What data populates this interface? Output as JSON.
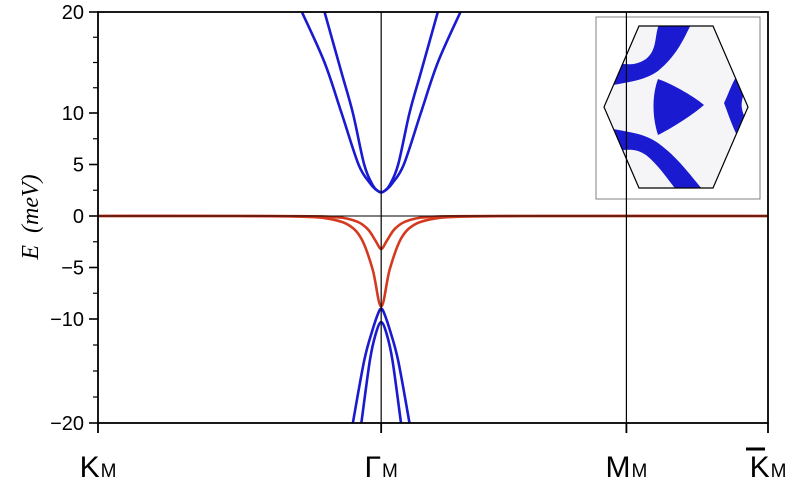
{
  "chart_data": {
    "type": "line",
    "title": "",
    "ylabel": {
      "symbol": "E",
      "unit": "(meV)"
    },
    "xlabel": "",
    "ylim": [
      -20,
      20
    ],
    "axis_break": "between 10 and 20 and between -10 and -20 (compressed outer scale)",
    "yticks": [
      {
        "label": "20",
        "value": 20
      },
      {
        "label": "10",
        "value": 10
      },
      {
        "label": "5",
        "value": 5
      },
      {
        "label": "0",
        "value": 0
      },
      {
        "label": "−5",
        "value": -5
      },
      {
        "label": "−10",
        "value": -10
      },
      {
        "label": "−20",
        "value": -20
      }
    ],
    "kpoints": [
      {
        "main": "K",
        "sub": "M",
        "bar": false,
        "x": 0
      },
      {
        "main": "Γ",
        "sub": "M",
        "bar": false,
        "x": 1
      },
      {
        "main": "M",
        "sub": "M",
        "bar": false,
        "x": 1.866
      },
      {
        "main": "K",
        "sub": "M",
        "bar": true,
        "x": 2.366
      }
    ],
    "vertical_lines_at": [
      1,
      1.866
    ],
    "zero_line": true,
    "series_colors": {
      "blue": "#1a1ad0",
      "red": "#d43a20"
    },
    "series": [
      {
        "color": "blue",
        "x": [
          0.72,
          0.8,
          0.86,
          0.92,
          0.96,
          0.98,
          1.0,
          1.02,
          1.04,
          1.08,
          1.14,
          1.2,
          1.28
        ],
        "y": [
          20,
          15,
          10,
          5,
          3.2,
          2.6,
          2.3,
          2.6,
          3.2,
          5,
          10,
          15,
          20
        ]
      },
      {
        "color": "blue",
        "x": [
          0.8,
          0.86,
          0.9,
          0.94,
          0.97,
          0.99,
          1.0,
          1.01,
          1.03,
          1.06,
          1.1,
          1.14,
          1.2
        ],
        "y": [
          20,
          14,
          10,
          5,
          3.0,
          2.4,
          2.3,
          2.4,
          3.0,
          5,
          10,
          14,
          20
        ]
      },
      {
        "color": "blue",
        "x": [
          0.9,
          0.94,
          0.97,
          0.99,
          1.0,
          1.01,
          1.03,
          1.06,
          1.1
        ],
        "y": [
          -20,
          -14,
          -11,
          -9.4,
          -9.0,
          -9.4,
          -11,
          -14,
          -20
        ]
      },
      {
        "color": "blue",
        "x": [
          0.93,
          0.96,
          0.98,
          1.0,
          1.02,
          1.04,
          1.07
        ],
        "y": [
          -20,
          -14,
          -11.5,
          -10.3,
          -11.5,
          -14,
          -20
        ]
      },
      {
        "color": "red",
        "x": [
          0,
          0.5,
          0.7,
          0.8,
          0.88,
          0.93,
          0.97,
          1.0,
          1.03,
          1.07,
          1.12,
          1.2,
          1.3,
          1.5,
          1.866,
          2.366
        ],
        "y": [
          0,
          0,
          -0.05,
          -0.2,
          -0.8,
          -2.2,
          -5.2,
          -8.8,
          -5.2,
          -2.2,
          -0.8,
          -0.2,
          -0.05,
          0,
          0,
          0
        ]
      },
      {
        "color": "red",
        "x": [
          0,
          0.5,
          0.8,
          0.9,
          0.95,
          0.98,
          1.0,
          1.02,
          1.05,
          1.1,
          1.2,
          1.5,
          2.366
        ],
        "y": [
          0,
          0,
          -0.05,
          -0.4,
          -1.2,
          -2.4,
          -3.2,
          -2.4,
          -1.2,
          -0.4,
          -0.05,
          0,
          0
        ]
      }
    ],
    "inset": {
      "type": "heatmap",
      "shape": "hexagon",
      "fill_color": "#1a1ad0",
      "background": "#f5f5f8"
    }
  }
}
